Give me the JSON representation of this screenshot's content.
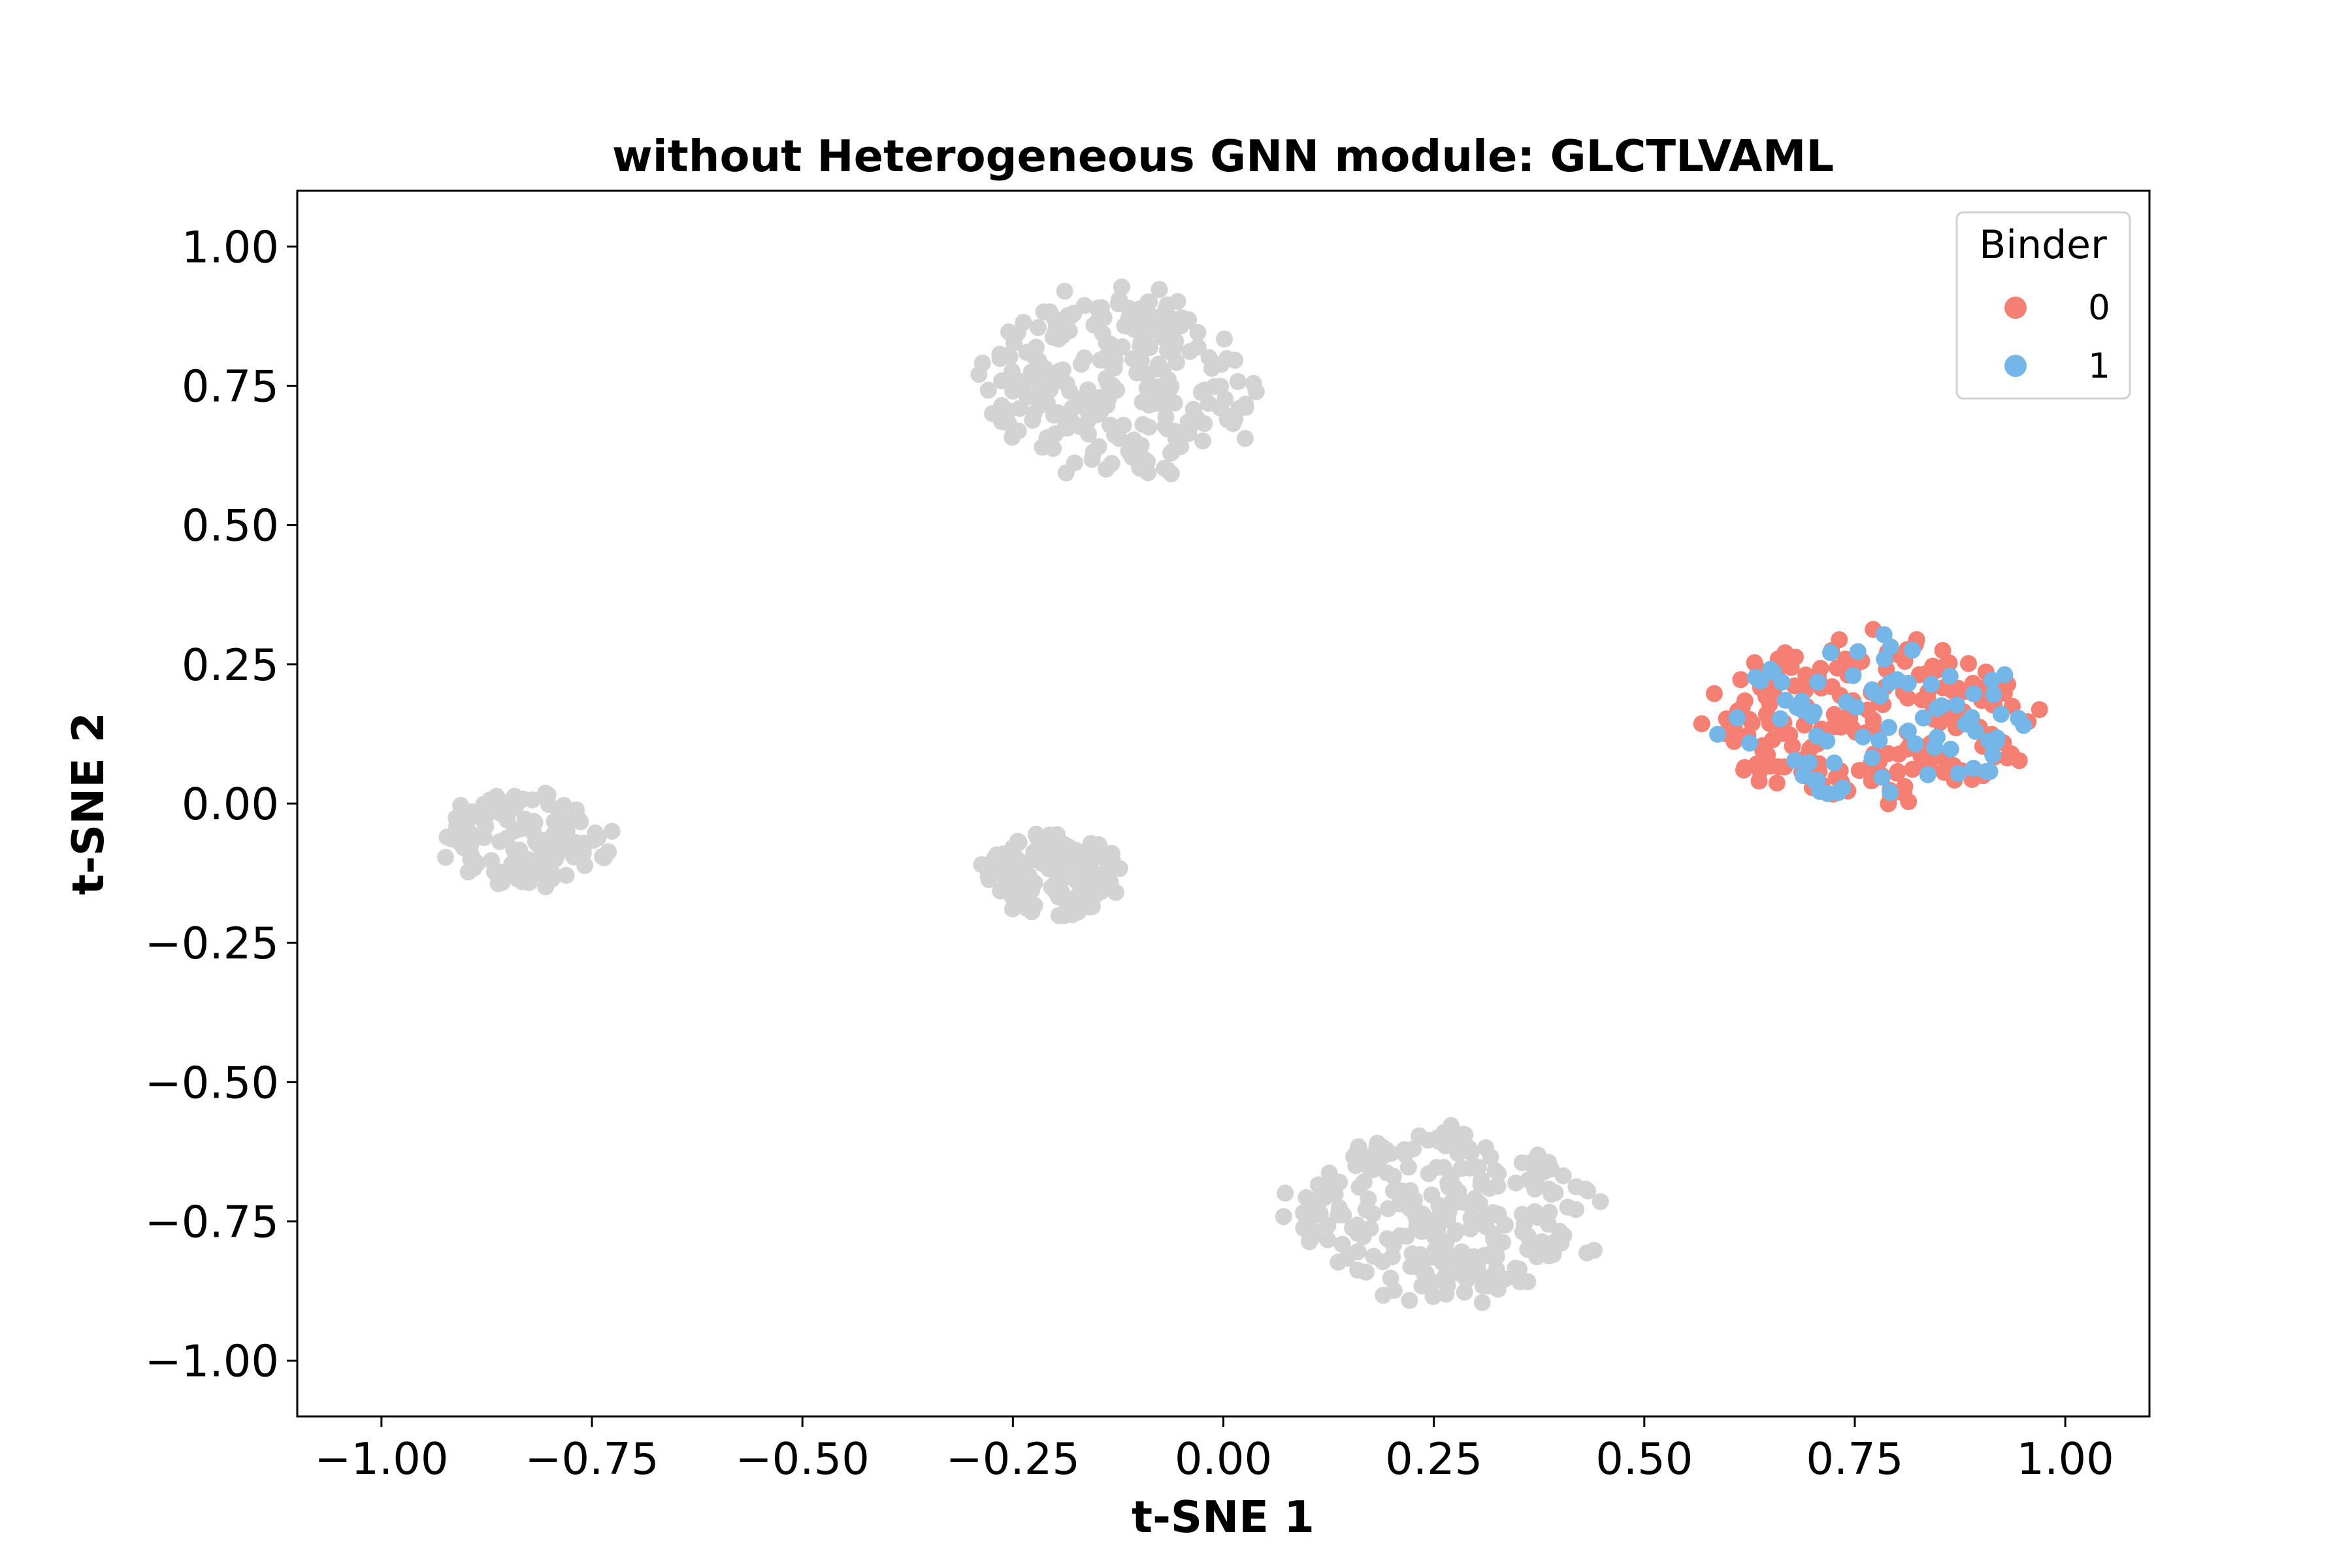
{
  "chart_data": {
    "type": "scatter",
    "title": "without Heterogeneous GNN module: GLCTLVAML",
    "xlabel": "t-SNE 1",
    "ylabel": "t-SNE 2",
    "xlim": [
      -1.1,
      1.1
    ],
    "ylim": [
      -1.1,
      1.1
    ],
    "xticks": [
      -1.0,
      -0.75,
      -0.5,
      -0.25,
      0.0,
      0.25,
      0.5,
      0.75,
      1.0
    ],
    "xtick_labels": [
      "−1.00",
      "−0.75",
      "−0.50",
      "−0.25",
      "0.00",
      "0.25",
      "0.50",
      "0.75",
      "1.00"
    ],
    "yticks": [
      1.0,
      0.75,
      0.5,
      0.25,
      0.0,
      -0.25,
      -0.5,
      -0.75,
      -1.0
    ],
    "ytick_labels": [
      "1.00",
      "0.75",
      "0.50",
      "0.25",
      "0.00",
      "−0.25",
      "−0.50",
      "−0.75",
      "−1.00"
    ],
    "grid": false,
    "legend": {
      "title": "Binder",
      "placement": "top-right",
      "entries": [
        {
          "label": "0",
          "color": "#f47f72"
        },
        {
          "label": "1",
          "color": "#74b6e7"
        }
      ]
    },
    "colors": {
      "unlabeled": "#d3d3d3",
      "binder_0": "#f47f72",
      "binder_1": "#74b6e7"
    },
    "series": [
      {
        "color": "#d3d3d3",
        "clusters": [
          {
            "center": [
              -0.12,
              0.75
            ],
            "spread": [
              0.16,
              0.17
            ],
            "count": 260
          },
          {
            "center": [
              -0.83,
              -0.06
            ],
            "spread": [
              0.1,
              0.085
            ],
            "count": 130
          },
          {
            "center": [
              -0.2,
              -0.13
            ],
            "spread": [
              0.085,
              0.075
            ],
            "count": 130
          },
          {
            "center": [
              0.26,
              -0.74
            ],
            "spread": [
              0.18,
              0.15
            ],
            "count": 260
          }
        ]
      },
      {
        "name": "0",
        "color": "#f47f72",
        "clusters": [
          {
            "center": [
              0.77,
              0.15
            ],
            "spread": [
              0.19,
              0.15
            ],
            "count": 210
          }
        ]
      },
      {
        "name": "1",
        "color": "#74b6e7",
        "clusters": [
          {
            "center": [
              0.77,
              0.15
            ],
            "spread": [
              0.18,
              0.14
            ],
            "count": 80
          }
        ]
      }
    ]
  }
}
